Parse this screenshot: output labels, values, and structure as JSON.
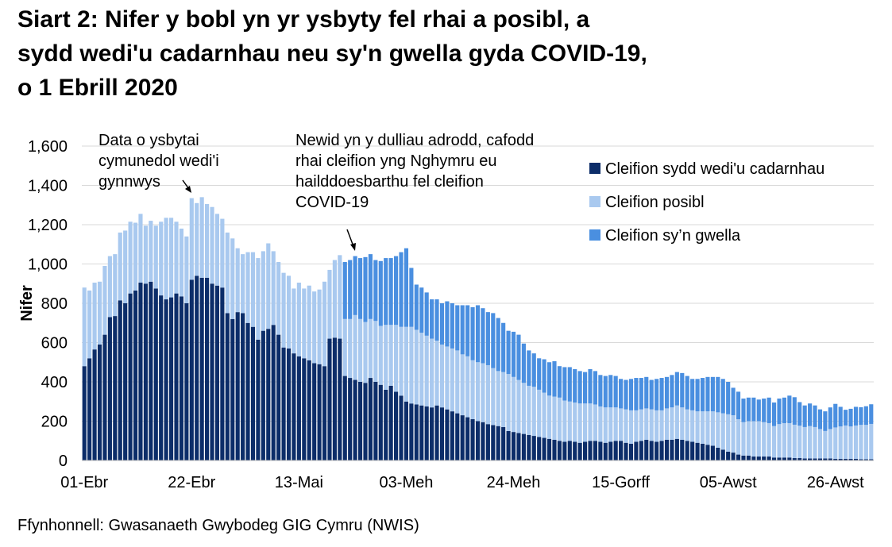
{
  "chart_data": {
    "type": "stacked-bar",
    "title": [
      "Siart 2: Nifer y bobl yn yr ysbyty fel rhai a posibl, a",
      "sydd wedi'u cadarnhau neu sy'n gwella gyda COVID-19,",
      "o 1 Ebrill 2020"
    ],
    "y_label": "Nifer",
    "source": "Ffynhonnell: Gwasanaeth Gwybodeg GIG Cymru (NWIS)",
    "annotations": [
      {
        "lines": [
          "Data o ysbytai",
          "cymunedol wedi'i",
          "gynnwys"
        ]
      },
      {
        "lines": [
          "Newid yn y dulliau adrodd, cafodd",
          "rhai cleifion yng Nghymru eu",
          "hailddoesbarthu fel cleifion",
          "COVID-19"
        ]
      }
    ],
    "ylim": [
      0,
      1600
    ],
    "yticks": [
      0,
      200,
      400,
      600,
      800,
      {
        "value": 1000,
        "label": "1,000"
      },
      {
        "value": 1200,
        "label": "1,200"
      },
      {
        "value": 1400,
        "label": "1,400"
      },
      {
        "value": 1600,
        "label": "1,600"
      }
    ],
    "grid": true,
    "legend": "top-right",
    "categories": [
      "01-Ebr",
      null,
      null,
      null,
      null,
      null,
      null,
      null,
      null,
      null,
      null,
      null,
      null,
      null,
      null,
      null,
      null,
      null,
      null,
      null,
      null,
      "22-Ebr",
      null,
      null,
      null,
      null,
      null,
      null,
      null,
      null,
      null,
      null,
      null,
      null,
      null,
      null,
      null,
      null,
      null,
      null,
      null,
      null,
      "13-Mai",
      null,
      null,
      null,
      null,
      null,
      null,
      null,
      null,
      null,
      null,
      null,
      null,
      null,
      null,
      null,
      null,
      null,
      null,
      null,
      null,
      "03-Meh",
      null,
      null,
      null,
      null,
      null,
      null,
      null,
      null,
      null,
      null,
      null,
      null,
      null,
      null,
      null,
      null,
      null,
      null,
      null,
      null,
      "24-Meh",
      null,
      null,
      null,
      null,
      null,
      null,
      null,
      null,
      null,
      null,
      null,
      null,
      null,
      null,
      null,
      null,
      null,
      null,
      null,
      null,
      "15-Gorff",
      null,
      null,
      null,
      null,
      null,
      null,
      null,
      null,
      null,
      null,
      null,
      null,
      null,
      null,
      null,
      null,
      null,
      null,
      null,
      null,
      "05-Awst",
      null,
      null,
      null,
      null,
      null,
      null,
      null,
      null,
      null,
      null,
      null,
      null,
      null,
      null,
      null,
      null,
      null,
      null,
      null,
      null,
      "26-Awst",
      null,
      null,
      null,
      null,
      null,
      null,
      null
    ],
    "series": [
      {
        "name": "Cleifion sydd wedi'u cadarnhau",
        "color": "#0c2d69",
        "values": [
          480,
          520,
          565,
          590,
          640,
          730,
          735,
          815,
          800,
          850,
          865,
          905,
          900,
          910,
          875,
          840,
          820,
          830,
          850,
          835,
          800,
          920,
          940,
          930,
          930,
          900,
          890,
          880,
          750,
          720,
          755,
          750,
          700,
          680,
          615,
          660,
          670,
          690,
          640,
          575,
          570,
          545,
          530,
          520,
          510,
          495,
          490,
          480,
          620,
          625,
          620,
          430,
          420,
          410,
          400,
          395,
          420,
          400,
          385,
          360,
          380,
          350,
          330,
          300,
          290,
          285,
          280,
          275,
          270,
          280,
          270,
          260,
          250,
          240,
          230,
          220,
          210,
          200,
          195,
          185,
          180,
          175,
          170,
          150,
          145,
          140,
          135,
          130,
          125,
          120,
          115,
          110,
          105,
          100,
          95,
          100,
          95,
          90,
          95,
          100,
          100,
          95,
          90,
          95,
          100,
          100,
          90,
          85,
          95,
          100,
          105,
          100,
          95,
          100,
          105,
          105,
          110,
          105,
          100,
          95,
          90,
          85,
          80,
          75,
          65,
          55,
          45,
          40,
          30,
          25,
          25,
          20,
          20,
          20,
          20,
          15,
          15,
          15,
          15,
          12,
          12,
          10,
          10,
          10,
          10,
          10,
          10,
          8,
          8,
          8,
          8,
          8,
          6,
          6,
          6
        ]
      },
      {
        "name": "Cleifion posibl",
        "color": "#a9c9ef",
        "values": [
          400,
          345,
          340,
          320,
          350,
          310,
          315,
          345,
          370,
          365,
          345,
          350,
          295,
          310,
          320,
          375,
          415,
          405,
          365,
          345,
          340,
          415,
          370,
          410,
          375,
          390,
          365,
          350,
          410,
          410,
          325,
          300,
          360,
          380,
          415,
          405,
          435,
          375,
          370,
          380,
          370,
          330,
          375,
          355,
          380,
          365,
          380,
          430,
          350,
          395,
          425,
          290,
          300,
          330,
          320,
          310,
          300,
          310,
          300,
          330,
          310,
          340,
          350,
          380,
          390,
          380,
          370,
          360,
          350,
          330,
          320,
          320,
          320,
          320,
          310,
          310,
          300,
          300,
          300,
          300,
          290,
          280,
          280,
          290,
          280,
          270,
          260,
          250,
          250,
          240,
          230,
          220,
          220,
          220,
          210,
          200,
          200,
          200,
          195,
          190,
          185,
          180,
          180,
          175,
          170,
          165,
          170,
          170,
          160,
          160,
          160,
          160,
          160,
          155,
          160,
          165,
          170,
          165,
          160,
          160,
          160,
          165,
          170,
          175,
          180,
          185,
          190,
          190,
          180,
          170,
          175,
          180,
          180,
          175,
          170,
          160,
          170,
          175,
          175,
          170,
          165,
          160,
          165,
          160,
          150,
          140,
          150,
          160,
          165,
          170,
          165,
          170,
          175,
          175,
          180
        ]
      },
      {
        "name": "Cleifion sy’n gwella",
        "color": "#4a8fe0",
        "values": [
          null,
          null,
          null,
          null,
          null,
          null,
          null,
          null,
          null,
          null,
          null,
          null,
          null,
          null,
          null,
          null,
          null,
          null,
          null,
          null,
          null,
          null,
          null,
          null,
          null,
          null,
          null,
          null,
          null,
          null,
          null,
          null,
          null,
          null,
          null,
          null,
          null,
          null,
          null,
          null,
          null,
          null,
          null,
          null,
          null,
          null,
          null,
          null,
          null,
          null,
          null,
          290,
          300,
          300,
          310,
          330,
          330,
          310,
          330,
          340,
          340,
          350,
          380,
          400,
          300,
          230,
          230,
          220,
          200,
          210,
          210,
          230,
          230,
          230,
          250,
          260,
          270,
          290,
          280,
          270,
          280,
          270,
          250,
          220,
          230,
          230,
          200,
          180,
          170,
          160,
          170,
          170,
          180,
          160,
          170,
          175,
          170,
          165,
          160,
          175,
          170,
          160,
          160,
          165,
          160,
          150,
          150,
          160,
          165,
          160,
          160,
          150,
          160,
          165,
          160,
          165,
          170,
          175,
          170,
          160,
          165,
          170,
          175,
          175,
          180,
          175,
          165,
          140,
          140,
          120,
          120,
          120,
          110,
          120,
          130,
          120,
          130,
          130,
          140,
          140,
          120,
          110,
          115,
          110,
          100,
          100,
          110,
          120,
          100,
          80,
          90,
          95,
          90,
          95,
          100
        ]
      }
    ]
  }
}
